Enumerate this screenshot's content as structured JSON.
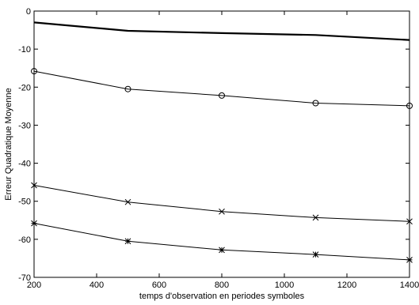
{
  "chart_data": {
    "type": "line",
    "title": "",
    "xlabel": "temps d'observation en periodes symboles",
    "ylabel": "Erreur Quadratique Moyenne",
    "xlim": [
      200,
      1400
    ],
    "ylim": [
      -70,
      0
    ],
    "xticks": [
      200,
      400,
      600,
      800,
      1000,
      1200,
      1400
    ],
    "yticks": [
      0,
      -10,
      -20,
      -30,
      -40,
      -50,
      -60,
      -70
    ],
    "grid": false,
    "legend": "none",
    "x": [
      200,
      500,
      800,
      1100,
      1400
    ],
    "series": [
      {
        "values": [
          -3.0,
          -5.2,
          -5.8,
          -6.3,
          -7.6
        ],
        "marker": "none",
        "line_weight": "bold"
      },
      {
        "values": [
          -15.8,
          -20.5,
          -22.2,
          -24.2,
          -24.9
        ],
        "marker": "circle",
        "line_weight": "normal"
      },
      {
        "values": [
          -45.8,
          -50.2,
          -52.7,
          -54.3,
          -55.3
        ],
        "marker": "x",
        "line_weight": "normal"
      },
      {
        "values": [
          -55.8,
          -60.5,
          -62.8,
          -64.0,
          -65.4
        ],
        "marker": "star",
        "line_weight": "normal"
      }
    ]
  }
}
